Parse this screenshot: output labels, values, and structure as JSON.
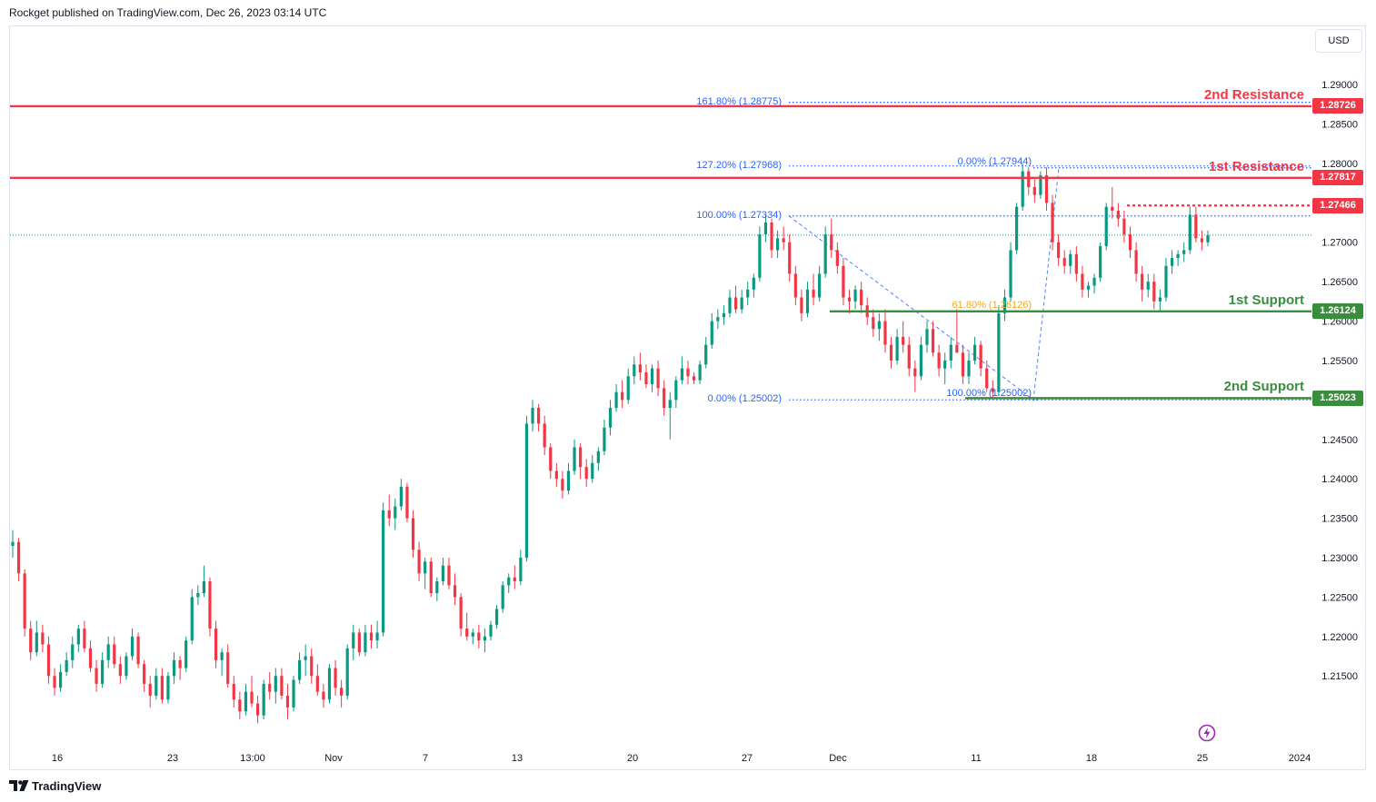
{
  "header": {
    "published_text": "Rockget published on TradingView.com, Dec 26, 2023 03:14 UTC"
  },
  "footer": {
    "brand": "TradingView"
  },
  "toolbar": {
    "currency": "USD"
  },
  "colors": {
    "up": "#089981",
    "down": "#f23645",
    "resistance": "#f23645",
    "support": "#388e3c",
    "fib": "#2962ff",
    "fib_golden": "#f5a623"
  },
  "chart_data": {
    "type": "candlestick",
    "symbol_currency": "USD",
    "ylim": [
      1.2065,
      1.2975
    ],
    "y_ticks": [
      "1.29500",
      "1.29000",
      "1.28500",
      "1.28000",
      "1.27500",
      "1.27000",
      "1.26500",
      "1.26000",
      "1.25500",
      "1.25000",
      "1.24500",
      "1.24000",
      "1.23500",
      "1.23000",
      "1.22500",
      "1.22000",
      "1.21500"
    ],
    "x_ticks": [
      "16",
      "23",
      "13:00",
      "Nov",
      "7",
      "13",
      "20",
      "27",
      "Dec",
      "11",
      "18",
      "25",
      "2024"
    ],
    "current_price": 1.2709,
    "levels": [
      {
        "name": "2nd Resistance",
        "price": 1.28726,
        "price_label": "1.28726",
        "kind": "resistance"
      },
      {
        "name": "1st Resistance",
        "price": 1.27817,
        "price_label": "1.27817",
        "kind": "resistance"
      },
      {
        "name": "",
        "price": 1.27466,
        "price_label": "1.27466",
        "kind": "pivot"
      },
      {
        "name": "1st Support",
        "price": 1.26124,
        "price_label": "1.26124",
        "kind": "support"
      },
      {
        "name": "2nd Support",
        "price": 1.25023,
        "price_label": "1.25023",
        "kind": "support"
      }
    ],
    "fib_levels": [
      {
        "label": "161.80% (1.28775)",
        "price": 1.28775
      },
      {
        "label": "127.20% (1.27968)",
        "price": 1.27968
      },
      {
        "label": "100.00% (1.27334)",
        "price": 1.27334
      },
      {
        "label": "0.00% (1.25002)",
        "price": 1.25002
      },
      {
        "label": "0.00% (1.27944)",
        "price": 1.27944
      },
      {
        "label": "61.80% (1.26126)",
        "price": 1.26126
      },
      {
        "label": "100.00% (1.25002)",
        "price": 1.25002
      }
    ],
    "candles": [
      [
        1.2315,
        1.2335,
        1.23,
        1.232
      ],
      [
        1.232,
        1.2325,
        1.227,
        1.228
      ],
      [
        1.228,
        1.2285,
        1.22,
        1.221
      ],
      [
        1.221,
        1.222,
        1.217,
        1.218
      ],
      [
        1.218,
        1.222,
        1.2175,
        1.2205
      ],
      [
        1.2205,
        1.2215,
        1.218,
        1.219
      ],
      [
        1.219,
        1.22,
        1.214,
        1.215
      ],
      [
        1.215,
        1.216,
        1.2125,
        1.2135
      ],
      [
        1.2135,
        1.2165,
        1.213,
        1.2155
      ],
      [
        1.2155,
        1.218,
        1.215,
        1.217
      ],
      [
        1.217,
        1.22,
        1.216,
        1.219
      ],
      [
        1.219,
        1.2215,
        1.218,
        1.221
      ],
      [
        1.221,
        1.222,
        1.218,
        1.2185
      ],
      [
        1.2185,
        1.2195,
        1.2155,
        1.216
      ],
      [
        1.216,
        1.217,
        1.213,
        1.214
      ],
      [
        1.214,
        1.218,
        1.2135,
        1.217
      ],
      [
        1.217,
        1.22,
        1.216,
        1.219
      ],
      [
        1.219,
        1.22,
        1.216,
        1.2165
      ],
      [
        1.2165,
        1.2175,
        1.214,
        1.215
      ],
      [
        1.215,
        1.218,
        1.2145,
        1.2175
      ],
      [
        1.2175,
        1.221,
        1.217,
        1.22
      ],
      [
        1.22,
        1.2205,
        1.216,
        1.2165
      ],
      [
        1.2165,
        1.217,
        1.213,
        1.214
      ],
      [
        1.214,
        1.215,
        1.211,
        1.2125
      ],
      [
        1.2125,
        1.216,
        1.212,
        1.215
      ],
      [
        1.215,
        1.216,
        1.2115,
        1.212
      ],
      [
        1.212,
        1.2155,
        1.2115,
        1.215
      ],
      [
        1.215,
        1.218,
        1.214,
        1.217
      ],
      [
        1.217,
        1.2175,
        1.2145,
        1.216
      ],
      [
        1.216,
        1.22,
        1.2155,
        1.2195
      ],
      [
        1.2195,
        1.226,
        1.219,
        1.225
      ],
      [
        1.225,
        1.2265,
        1.224,
        1.2255
      ],
      [
        1.2255,
        1.229,
        1.225,
        1.227
      ],
      [
        1.227,
        1.2275,
        1.22,
        1.221
      ],
      [
        1.221,
        1.222,
        1.216,
        1.217
      ],
      [
        1.217,
        1.2185,
        1.215,
        1.218
      ],
      [
        1.218,
        1.219,
        1.2135,
        1.214
      ],
      [
        1.214,
        1.215,
        1.211,
        1.212
      ],
      [
        1.212,
        1.213,
        1.2095,
        1.2105
      ],
      [
        1.2105,
        1.214,
        1.21,
        1.213
      ],
      [
        1.213,
        1.215,
        1.211,
        1.2115
      ],
      [
        1.2115,
        1.2125,
        1.209,
        1.21
      ],
      [
        1.21,
        1.2145,
        1.2095,
        1.214
      ],
      [
        1.214,
        1.2155,
        1.212,
        1.213
      ],
      [
        1.213,
        1.216,
        1.2115,
        1.215
      ],
      [
        1.215,
        1.216,
        1.212,
        1.2125
      ],
      [
        1.2125,
        1.214,
        1.2095,
        1.211
      ],
      [
        1.211,
        1.215,
        1.2105,
        1.2145
      ],
      [
        1.2145,
        1.218,
        1.214,
        1.217
      ],
      [
        1.217,
        1.219,
        1.215,
        1.2175
      ],
      [
        1.2175,
        1.2185,
        1.214,
        1.215
      ],
      [
        1.215,
        1.2165,
        1.2125,
        1.213
      ],
      [
        1.213,
        1.214,
        1.211,
        1.212
      ],
      [
        1.212,
        1.2165,
        1.2115,
        1.216
      ],
      [
        1.216,
        1.217,
        1.2125,
        1.2135
      ],
      [
        1.2135,
        1.2145,
        1.211,
        1.2125
      ],
      [
        1.2125,
        1.219,
        1.212,
        1.2185
      ],
      [
        1.2185,
        1.2215,
        1.217,
        1.2205
      ],
      [
        1.2205,
        1.221,
        1.2175,
        1.218
      ],
      [
        1.218,
        1.2215,
        1.2175,
        1.2205
      ],
      [
        1.2205,
        1.2215,
        1.2185,
        1.2195
      ],
      [
        1.2195,
        1.222,
        1.2185,
        1.2205
      ],
      [
        1.2205,
        1.237,
        1.22,
        1.236
      ],
      [
        1.236,
        1.238,
        1.234,
        1.235
      ],
      [
        1.235,
        1.2375,
        1.2335,
        1.2365
      ],
      [
        1.2365,
        1.24,
        1.236,
        1.239
      ],
      [
        1.239,
        1.2395,
        1.2345,
        1.235
      ],
      [
        1.235,
        1.236,
        1.23,
        1.231
      ],
      [
        1.231,
        1.232,
        1.227,
        1.228
      ],
      [
        1.228,
        1.23,
        1.226,
        1.2295
      ],
      [
        1.2295,
        1.23,
        1.225,
        1.2255
      ],
      [
        1.2255,
        1.2275,
        1.2245,
        1.227
      ],
      [
        1.227,
        1.23,
        1.2265,
        1.229
      ],
      [
        1.229,
        1.23,
        1.226,
        1.2265
      ],
      [
        1.2265,
        1.228,
        1.224,
        1.225
      ],
      [
        1.225,
        1.2255,
        1.22,
        1.221
      ],
      [
        1.221,
        1.223,
        1.2195,
        1.22
      ],
      [
        1.22,
        1.221,
        1.219,
        1.2205
      ],
      [
        1.2205,
        1.2215,
        1.2185,
        1.2195
      ],
      [
        1.2195,
        1.221,
        1.218,
        1.22
      ],
      [
        1.22,
        1.222,
        1.2195,
        1.2215
      ],
      [
        1.2215,
        1.224,
        1.221,
        1.2235
      ],
      [
        1.2235,
        1.227,
        1.223,
        1.2265
      ],
      [
        1.2265,
        1.228,
        1.2255,
        1.2275
      ],
      [
        1.2275,
        1.229,
        1.226,
        1.227
      ],
      [
        1.227,
        1.231,
        1.2265,
        1.23
      ],
      [
        1.23,
        1.248,
        1.2295,
        1.247
      ],
      [
        1.247,
        1.25,
        1.246,
        1.249
      ],
      [
        1.249,
        1.2495,
        1.246,
        1.247
      ],
      [
        1.247,
        1.248,
        1.243,
        1.244
      ],
      [
        1.244,
        1.2445,
        1.24,
        1.241
      ],
      [
        1.241,
        1.242,
        1.239,
        1.24
      ],
      [
        1.24,
        1.241,
        1.2375,
        1.2385
      ],
      [
        1.2385,
        1.242,
        1.238,
        1.241
      ],
      [
        1.241,
        1.245,
        1.2405,
        1.244
      ],
      [
        1.244,
        1.2445,
        1.24,
        1.2415
      ],
      [
        1.2415,
        1.2425,
        1.239,
        1.24
      ],
      [
        1.24,
        1.243,
        1.2395,
        1.242
      ],
      [
        1.242,
        1.244,
        1.241,
        1.2435
      ],
      [
        1.2435,
        1.2475,
        1.243,
        1.2465
      ],
      [
        1.2465,
        1.25,
        1.2455,
        1.249
      ],
      [
        1.249,
        1.252,
        1.2485,
        1.251
      ],
      [
        1.251,
        1.2525,
        1.249,
        1.25
      ],
      [
        1.25,
        1.254,
        1.2495,
        1.253
      ],
      [
        1.253,
        1.2555,
        1.252,
        1.2545
      ],
      [
        1.2545,
        1.256,
        1.2525,
        1.2535
      ],
      [
        1.2535,
        1.2545,
        1.2515,
        1.252
      ],
      [
        1.252,
        1.2545,
        1.251,
        1.254
      ],
      [
        1.254,
        1.255,
        1.2505,
        1.2515
      ],
      [
        1.2515,
        1.2525,
        1.248,
        1.249
      ],
      [
        1.249,
        1.251,
        1.245,
        1.25
      ],
      [
        1.25,
        1.253,
        1.249,
        1.2525
      ],
      [
        1.2525,
        1.2555,
        1.252,
        1.254
      ],
      [
        1.254,
        1.255,
        1.252,
        1.253
      ],
      [
        1.253,
        1.2535,
        1.252,
        1.2525
      ],
      [
        1.2525,
        1.255,
        1.252,
        1.2545
      ],
      [
        1.2545,
        1.258,
        1.254,
        1.257
      ],
      [
        1.257,
        1.261,
        1.2565,
        1.26
      ],
      [
        1.26,
        1.2615,
        1.259,
        1.2605
      ],
      [
        1.2605,
        1.262,
        1.2595,
        1.261
      ],
      [
        1.261,
        1.264,
        1.2605,
        1.263
      ],
      [
        1.263,
        1.2645,
        1.261,
        1.2615
      ],
      [
        1.2615,
        1.264,
        1.261,
        1.263
      ],
      [
        1.263,
        1.265,
        1.262,
        1.264
      ],
      [
        1.264,
        1.266,
        1.263,
        1.2655
      ],
      [
        1.2655,
        1.272,
        1.265,
        1.271
      ],
      [
        1.271,
        1.2735,
        1.27,
        1.2725
      ],
      [
        1.2725,
        1.273,
        1.268,
        1.269
      ],
      [
        1.269,
        1.2715,
        1.268,
        1.2705
      ],
      [
        1.2705,
        1.272,
        1.269,
        1.27
      ],
      [
        1.27,
        1.271,
        1.265,
        1.266
      ],
      [
        1.266,
        1.267,
        1.262,
        1.263
      ],
      [
        1.263,
        1.264,
        1.26,
        1.261
      ],
      [
        1.261,
        1.265,
        1.2605,
        1.264
      ],
      [
        1.264,
        1.266,
        1.262,
        1.263
      ],
      [
        1.263,
        1.267,
        1.2625,
        1.266
      ],
      [
        1.266,
        1.272,
        1.2655,
        1.271
      ],
      [
        1.271,
        1.273,
        1.268,
        1.269
      ],
      [
        1.269,
        1.27,
        1.266,
        1.267
      ],
      [
        1.267,
        1.268,
        1.262,
        1.263
      ],
      [
        1.263,
        1.264,
        1.261,
        1.2625
      ],
      [
        1.2625,
        1.2645,
        1.2615,
        1.264
      ],
      [
        1.264,
        1.265,
        1.261,
        1.262
      ],
      [
        1.262,
        1.263,
        1.2595,
        1.2605
      ],
      [
        1.2605,
        1.2615,
        1.258,
        1.259
      ],
      [
        1.259,
        1.261,
        1.2575,
        1.26
      ],
      [
        1.26,
        1.2615,
        1.256,
        1.257
      ],
      [
        1.257,
        1.258,
        1.254,
        1.255
      ],
      [
        1.255,
        1.259,
        1.2545,
        1.258
      ],
      [
        1.258,
        1.26,
        1.256,
        1.257
      ],
      [
        1.257,
        1.258,
        1.253,
        1.254
      ],
      [
        1.254,
        1.255,
        1.251,
        1.253
      ],
      [
        1.253,
        1.258,
        1.2525,
        1.257
      ],
      [
        1.257,
        1.26,
        1.256,
        1.259
      ],
      [
        1.259,
        1.26,
        1.2555,
        1.256
      ],
      [
        1.256,
        1.257,
        1.253,
        1.254
      ],
      [
        1.254,
        1.256,
        1.252,
        1.255
      ],
      [
        1.255,
        1.258,
        1.254,
        1.257
      ],
      [
        1.257,
        1.2615,
        1.256,
        1.256
      ],
      [
        1.256,
        1.257,
        1.252,
        1.253
      ],
      [
        1.253,
        1.256,
        1.252,
        1.255
      ],
      [
        1.255,
        1.258,
        1.2545,
        1.257
      ],
      [
        1.257,
        1.2575,
        1.253,
        1.254
      ],
      [
        1.254,
        1.255,
        1.251,
        1.2515
      ],
      [
        1.2515,
        1.2525,
        1.25,
        1.251
      ],
      [
        1.251,
        1.262,
        1.2505,
        1.261
      ],
      [
        1.261,
        1.264,
        1.26,
        1.263
      ],
      [
        1.263,
        1.27,
        1.2625,
        1.269
      ],
      [
        1.269,
        1.275,
        1.2685,
        1.2745
      ],
      [
        1.2745,
        1.28,
        1.274,
        1.279
      ],
      [
        1.279,
        1.2795,
        1.276,
        1.277
      ],
      [
        1.277,
        1.278,
        1.275,
        1.276
      ],
      [
        1.276,
        1.279,
        1.2755,
        1.2785
      ],
      [
        1.2785,
        1.2795,
        1.274,
        1.275
      ],
      [
        1.275,
        1.276,
        1.269,
        1.27
      ],
      [
        1.27,
        1.271,
        1.267,
        1.268
      ],
      [
        1.268,
        1.269,
        1.266,
        1.267
      ],
      [
        1.267,
        1.269,
        1.266,
        1.2685
      ],
      [
        1.2685,
        1.2695,
        1.265,
        1.266
      ],
      [
        1.266,
        1.267,
        1.263,
        1.264
      ],
      [
        1.264,
        1.265,
        1.263,
        1.2645
      ],
      [
        1.2645,
        1.266,
        1.2635,
        1.2655
      ],
      [
        1.2655,
        1.27,
        1.265,
        1.2695
      ],
      [
        1.2695,
        1.275,
        1.269,
        1.2745
      ],
      [
        1.2745,
        1.277,
        1.273,
        1.274
      ],
      [
        1.274,
        1.275,
        1.272,
        1.273
      ],
      [
        1.273,
        1.274,
        1.27,
        1.271
      ],
      [
        1.271,
        1.272,
        1.268,
        1.269
      ],
      [
        1.269,
        1.27,
        1.265,
        1.266
      ],
      [
        1.266,
        1.267,
        1.2625,
        1.264
      ],
      [
        1.264,
        1.266,
        1.263,
        1.265
      ],
      [
        1.265,
        1.266,
        1.2615,
        1.2625
      ],
      [
        1.2625,
        1.264,
        1.2612,
        1.263
      ],
      [
        1.263,
        1.268,
        1.2625,
        1.267
      ],
      [
        1.267,
        1.269,
        1.266,
        1.268
      ],
      [
        1.268,
        1.269,
        1.267,
        1.2685
      ],
      [
        1.2685,
        1.27,
        1.2675,
        1.269
      ],
      [
        1.269,
        1.2745,
        1.2685,
        1.2735
      ],
      [
        1.2735,
        1.2745,
        1.27,
        1.2705
      ],
      [
        1.2705,
        1.2715,
        1.269,
        1.27
      ],
      [
        1.27,
        1.2715,
        1.2695,
        1.2709
      ]
    ]
  }
}
